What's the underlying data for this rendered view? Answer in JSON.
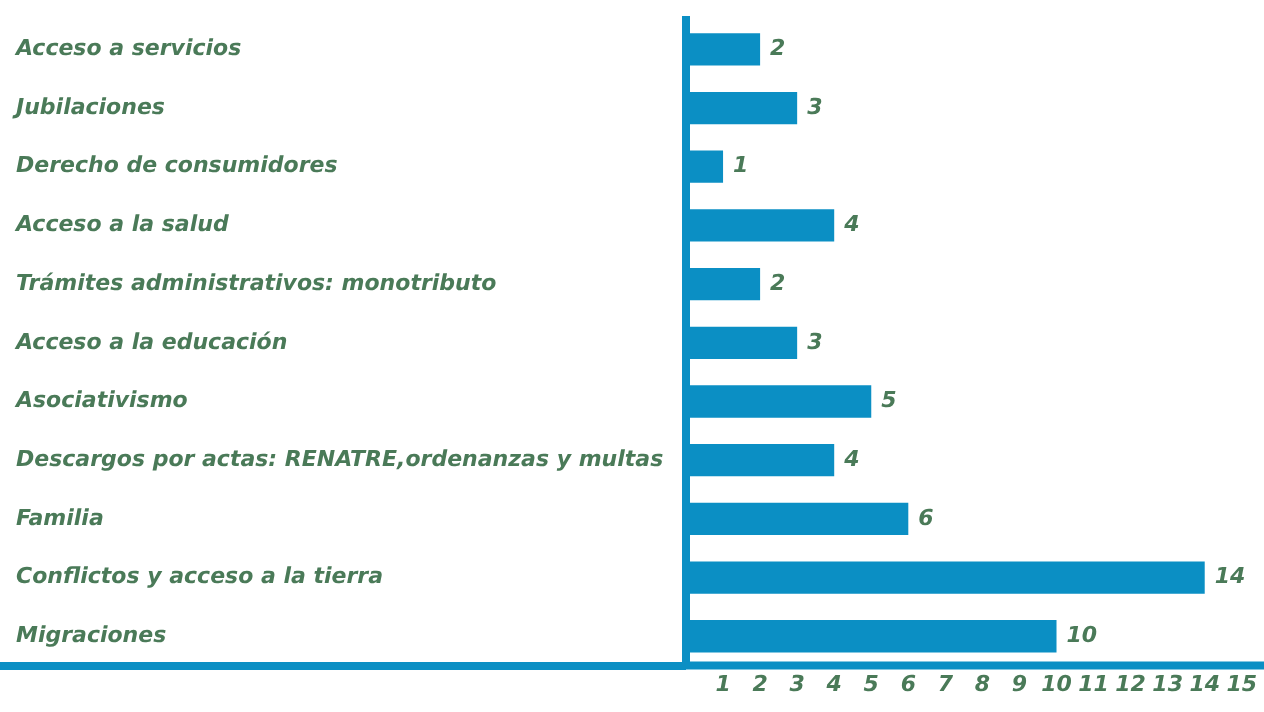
{
  "chart_data": {
    "type": "bar",
    "orientation": "horizontal",
    "categories": [
      "Acceso a servicios",
      "Jubilaciones",
      "Derecho de consumidores",
      "Acceso a la salud",
      "Trámites administrativos: monotributo",
      "Acceso a la educación",
      "Asociativismo",
      "Descargos por actas: RENATRE,ordenanzas y multas",
      "Familia",
      "Conflictos y acceso a la tierra",
      "Migraciones"
    ],
    "values": [
      2,
      3,
      1,
      4,
      2,
      3,
      5,
      4,
      6,
      14,
      10
    ],
    "color": "#0b8fc4",
    "xlim": [
      0,
      15.6
    ],
    "xticks": [
      1,
      2,
      3,
      4,
      5,
      6,
      7,
      8,
      9,
      10,
      11,
      12,
      13,
      14,
      15
    ],
    "data_labels": true,
    "grid": false,
    "legend": false
  }
}
